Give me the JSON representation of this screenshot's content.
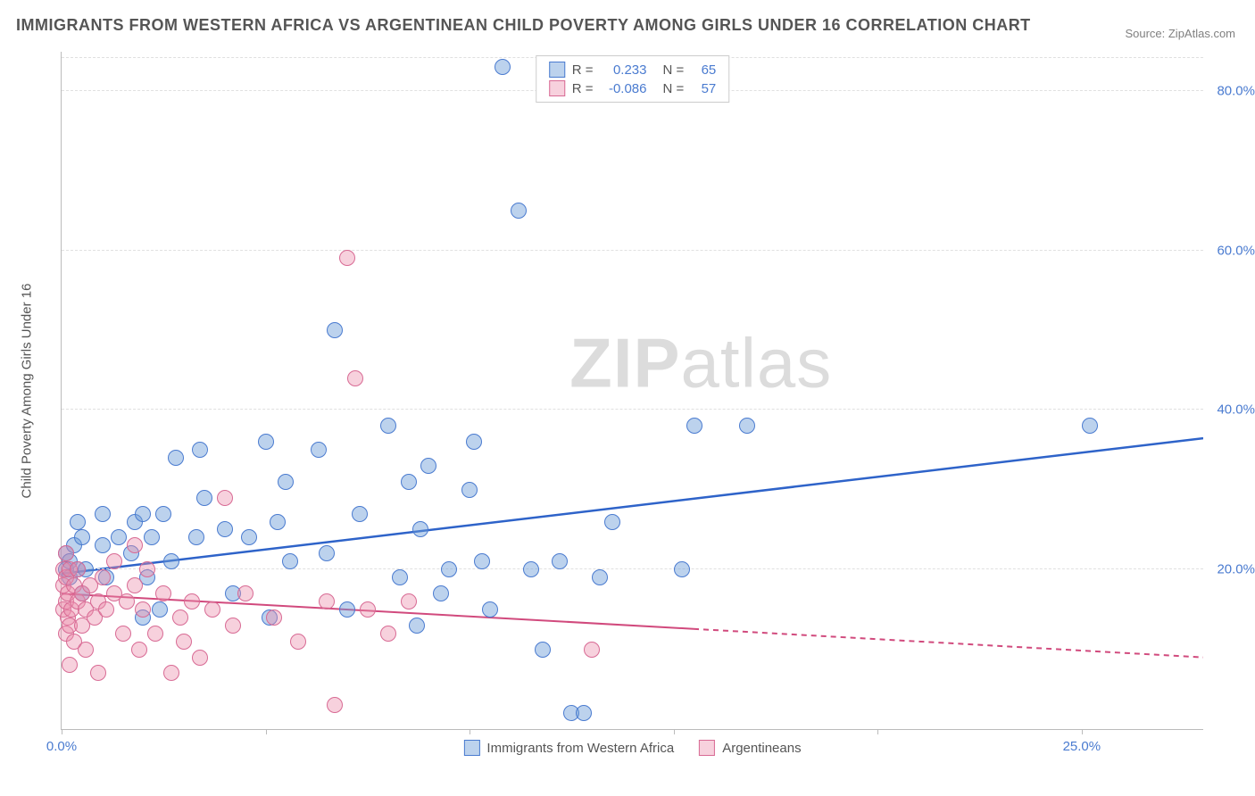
{
  "title": "IMMIGRANTS FROM WESTERN AFRICA VS ARGENTINEAN CHILD POVERTY AMONG GIRLS UNDER 16 CORRELATION CHART",
  "source": "Source: ZipAtlas.com",
  "watermark_bold": "ZIP",
  "watermark_light": "atlas",
  "chart": {
    "type": "scatter-with-trend",
    "ylabel": "Child Poverty Among Girls Under 16",
    "xlim": [
      0,
      28
    ],
    "ylim": [
      0,
      85
    ],
    "x_ticks": [
      0,
      5,
      10,
      15,
      20,
      25
    ],
    "x_tick_labels": [
      "0.0%",
      "",
      "",
      "",
      "",
      "25.0%"
    ],
    "y_gridlines": [
      20,
      40,
      60,
      80
    ],
    "y_tick_labels": [
      "20.0%",
      "40.0%",
      "60.0%",
      "80.0%"
    ],
    "tick_color": "#4a7bd0",
    "grid_color": "#e0e0e0",
    "axis_color": "#bbbbbb",
    "background": "#ffffff",
    "series": [
      {
        "id": "wafrica",
        "label": "Immigrants from Western Africa",
        "R": "0.233",
        "N": "65",
        "marker_fill": "rgba(106,155,216,0.45)",
        "marker_stroke": "#4a7bd0",
        "marker_r": 9,
        "trend_color": "#2e63c9",
        "trend_width": 2.5,
        "trend_y0": 19.5,
        "trend_y1": 36.5,
        "trend_dash_from_x": null,
        "points": [
          [
            0.1,
            20
          ],
          [
            0.1,
            22
          ],
          [
            0.2,
            19
          ],
          [
            0.2,
            21
          ],
          [
            0.3,
            23
          ],
          [
            0.4,
            20
          ],
          [
            0.4,
            26
          ],
          [
            0.5,
            17
          ],
          [
            0.5,
            24
          ],
          [
            0.6,
            20
          ],
          [
            1.0,
            23
          ],
          [
            1.0,
            27
          ],
          [
            1.1,
            19
          ],
          [
            1.4,
            24
          ],
          [
            1.7,
            22
          ],
          [
            1.8,
            26
          ],
          [
            2.0,
            14
          ],
          [
            2.0,
            27
          ],
          [
            2.1,
            19
          ],
          [
            2.2,
            24
          ],
          [
            2.4,
            15
          ],
          [
            2.5,
            27
          ],
          [
            2.7,
            21
          ],
          [
            2.8,
            34
          ],
          [
            3.3,
            24
          ],
          [
            3.4,
            35
          ],
          [
            3.5,
            29
          ],
          [
            4.0,
            25
          ],
          [
            4.2,
            17
          ],
          [
            4.6,
            24
          ],
          [
            5.0,
            36
          ],
          [
            5.1,
            14
          ],
          [
            5.3,
            26
          ],
          [
            5.5,
            31
          ],
          [
            5.6,
            21
          ],
          [
            6.3,
            35
          ],
          [
            6.5,
            22
          ],
          [
            6.7,
            50
          ],
          [
            7.0,
            15
          ],
          [
            7.3,
            27
          ],
          [
            8.0,
            38
          ],
          [
            8.3,
            19
          ],
          [
            8.5,
            31
          ],
          [
            8.7,
            13
          ],
          [
            8.8,
            25
          ],
          [
            9.0,
            33
          ],
          [
            9.3,
            17
          ],
          [
            9.5,
            20
          ],
          [
            10.0,
            30
          ],
          [
            10.1,
            36
          ],
          [
            10.3,
            21
          ],
          [
            10.5,
            15
          ],
          [
            10.8,
            83
          ],
          [
            11.2,
            65
          ],
          [
            11.5,
            20
          ],
          [
            11.8,
            10
          ],
          [
            12.2,
            21
          ],
          [
            12.5,
            2
          ],
          [
            12.8,
            2
          ],
          [
            13.2,
            19
          ],
          [
            13.5,
            26
          ],
          [
            15.2,
            20
          ],
          [
            15.5,
            38
          ],
          [
            16.8,
            38
          ],
          [
            25.2,
            38
          ]
        ]
      },
      {
        "id": "argentina",
        "label": "Argentineans",
        "R": "-0.086",
        "N": "57",
        "marker_fill": "rgba(235,140,170,0.40)",
        "marker_stroke": "#d86a94",
        "marker_r": 9,
        "trend_color": "#d14a7d",
        "trend_width": 2,
        "trend_y0": 17,
        "trend_y1": 9,
        "trend_dash_from_x": 15.5,
        "points": [
          [
            0.05,
            18
          ],
          [
            0.05,
            20
          ],
          [
            0.05,
            15
          ],
          [
            0.1,
            12
          ],
          [
            0.1,
            16
          ],
          [
            0.1,
            19
          ],
          [
            0.1,
            22
          ],
          [
            0.15,
            14
          ],
          [
            0.15,
            17
          ],
          [
            0.2,
            20
          ],
          [
            0.2,
            13
          ],
          [
            0.2,
            8
          ],
          [
            0.25,
            15
          ],
          [
            0.3,
            18
          ],
          [
            0.3,
            11
          ],
          [
            0.4,
            16
          ],
          [
            0.4,
            20
          ],
          [
            0.5,
            13
          ],
          [
            0.5,
            17
          ],
          [
            0.6,
            15
          ],
          [
            0.6,
            10
          ],
          [
            0.7,
            18
          ],
          [
            0.8,
            14
          ],
          [
            0.9,
            16
          ],
          [
            0.9,
            7
          ],
          [
            1.0,
            19
          ],
          [
            1.1,
            15
          ],
          [
            1.3,
            17
          ],
          [
            1.3,
            21
          ],
          [
            1.5,
            12
          ],
          [
            1.6,
            16
          ],
          [
            1.8,
            18
          ],
          [
            1.8,
            23
          ],
          [
            1.9,
            10
          ],
          [
            2.0,
            15
          ],
          [
            2.1,
            20
          ],
          [
            2.3,
            12
          ],
          [
            2.5,
            17
          ],
          [
            2.7,
            7
          ],
          [
            2.9,
            14
          ],
          [
            3.0,
            11
          ],
          [
            3.2,
            16
          ],
          [
            3.4,
            9
          ],
          [
            3.7,
            15
          ],
          [
            4.0,
            29
          ],
          [
            4.2,
            13
          ],
          [
            4.5,
            17
          ],
          [
            5.2,
            14
          ],
          [
            5.8,
            11
          ],
          [
            6.5,
            16
          ],
          [
            6.7,
            3
          ],
          [
            7.0,
            59
          ],
          [
            7.2,
            44
          ],
          [
            7.5,
            15
          ],
          [
            8.0,
            12
          ],
          [
            8.5,
            16
          ],
          [
            13.0,
            10
          ]
        ]
      }
    ],
    "legend_top": {
      "R_label": "R =",
      "N_label": "N ="
    },
    "legend_bottom_order": [
      "wafrica",
      "argentina"
    ]
  }
}
